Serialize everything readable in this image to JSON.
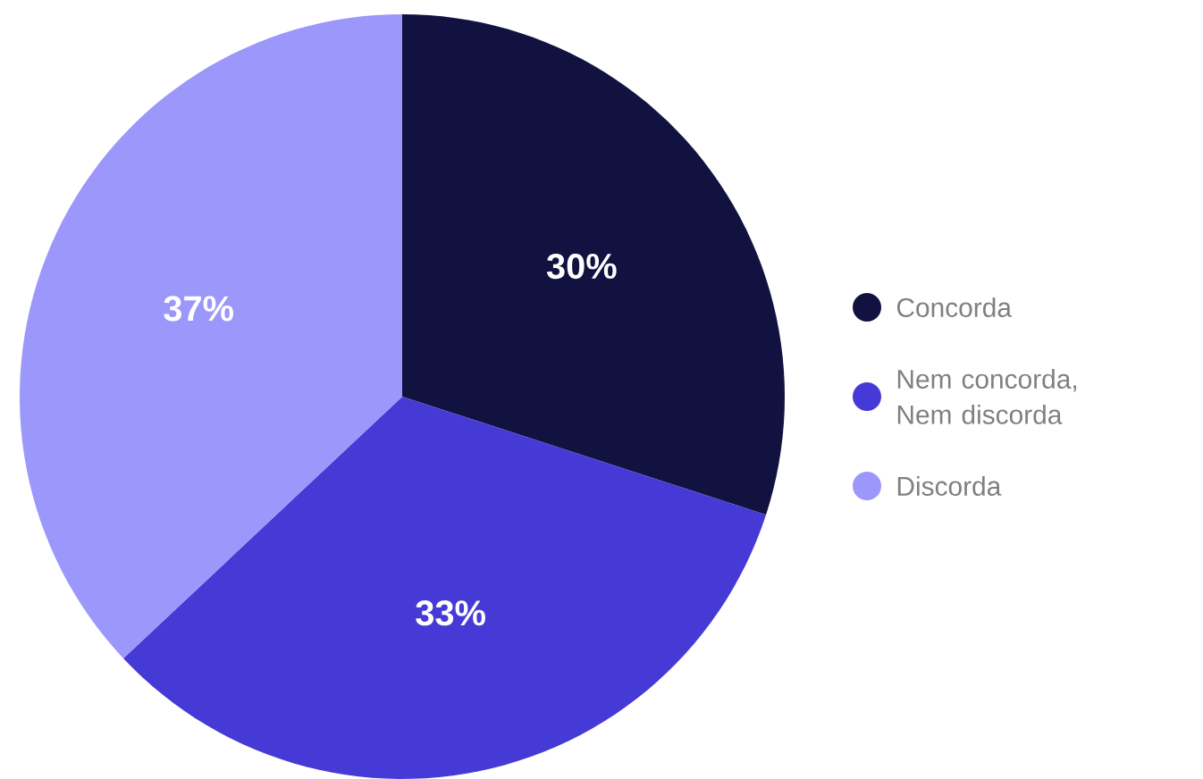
{
  "chart_data": {
    "type": "pie",
    "categories": [
      "Concorda",
      "Nem concorda, Nem discorda",
      "Discorda"
    ],
    "values": [
      30,
      33,
      37
    ],
    "value_labels": [
      "30%",
      "33%",
      "37%"
    ],
    "colors": [
      "#111240",
      "#463ad6",
      "#9b97fb"
    ],
    "legend": "right"
  }
}
